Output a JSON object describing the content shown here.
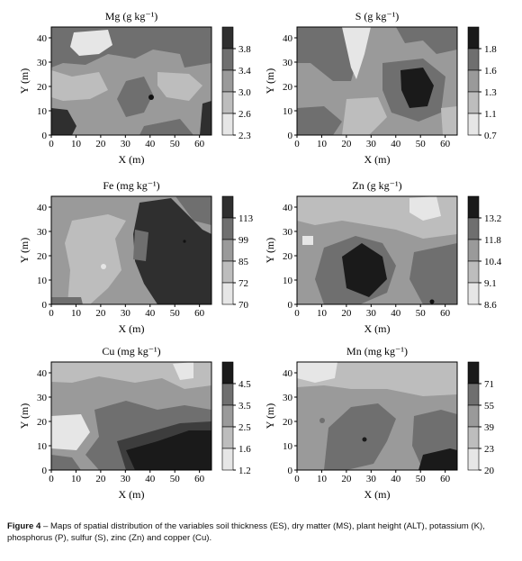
{
  "panels": [
    {
      "title": "Mg (g kg⁻¹)",
      "xlabel": "X (m)",
      "ylabel": "Y (m)",
      "xticks": [
        "0",
        "10",
        "20",
        "30",
        "40",
        "50",
        "60"
      ],
      "yticks": [
        "0",
        "10",
        "20",
        "30",
        "40"
      ],
      "legend": [
        "3.8",
        "3.4",
        "3.0",
        "2.6",
        "2.3"
      ],
      "shades": [
        "#e6e6e6",
        "#bdbdbd",
        "#9a9a9a",
        "#6f6f6f",
        "#2f2f2f"
      ]
    },
    {
      "title": "S (g kg⁻¹)",
      "xlabel": "X (m)",
      "ylabel": "Y (m)",
      "xticks": [
        "0",
        "10",
        "20",
        "30",
        "40",
        "50",
        "60"
      ],
      "yticks": [
        "0",
        "10",
        "20",
        "30",
        "40"
      ],
      "legend": [
        "1.8",
        "1.6",
        "1.3",
        "1.1",
        "0.7"
      ],
      "shades": [
        "#e6e6e6",
        "#bdbdbd",
        "#9a9a9a",
        "#6f6f6f",
        "#1a1a1a"
      ]
    },
    {
      "title": "Fe (mg kg⁻¹)",
      "xlabel": "X (m)",
      "ylabel": "Y (m)",
      "xticks": [
        "0",
        "10",
        "20",
        "30",
        "40",
        "50",
        "60"
      ],
      "yticks": [
        "0",
        "10",
        "20",
        "30",
        "40"
      ],
      "legend": [
        "113",
        "99",
        "85",
        "72",
        "70"
      ],
      "shades": [
        "#e6e6e6",
        "#bdbdbd",
        "#9a9a9a",
        "#6f6f6f",
        "#2f2f2f"
      ]
    },
    {
      "title": "Zn (g kg⁻¹)",
      "xlabel": "X (m)",
      "ylabel": "Y (m)",
      "xticks": [
        "0",
        "10",
        "20",
        "30",
        "40",
        "50",
        "60"
      ],
      "yticks": [
        "0",
        "10",
        "20",
        "30",
        "40"
      ],
      "legend": [
        "13.2",
        "11.8",
        "10.4",
        "9.1",
        "8.6"
      ],
      "shades": [
        "#e6e6e6",
        "#bdbdbd",
        "#9a9a9a",
        "#6f6f6f",
        "#1a1a1a"
      ]
    },
    {
      "title": "Cu (mg kg⁻¹)",
      "xlabel": "X (m)",
      "ylabel": "Y (m)",
      "xticks": [
        "0",
        "10",
        "20",
        "30",
        "40",
        "50",
        "60"
      ],
      "yticks": [
        "0",
        "10",
        "20",
        "30",
        "40"
      ],
      "legend": [
        "4.5",
        "3.5",
        "2.5",
        "1.6",
        "1.2"
      ],
      "shades": [
        "#e6e6e6",
        "#bdbdbd",
        "#9a9a9a",
        "#6f6f6f",
        "#1a1a1a"
      ]
    },
    {
      "title": "Mn (mg kg⁻¹)",
      "xlabel": "X (m)",
      "ylabel": "Y (m)",
      "xticks": [
        "0",
        "10",
        "20",
        "30",
        "40",
        "50",
        "60"
      ],
      "yticks": [
        "0",
        "10",
        "20",
        "30",
        "40"
      ],
      "legend": [
        "71",
        "55",
        "39",
        "23",
        "20"
      ],
      "shades": [
        "#e6e6e6",
        "#bdbdbd",
        "#9a9a9a",
        "#6f6f6f",
        "#1a1a1a"
      ]
    }
  ],
  "caption": {
    "label": "Figure 4",
    "text": " – Maps of spatial distribution of the variables soil thickness (ES), dry matter (MS), plant height (ALT), potassium (K), phosphorus (P), sulfur (S), zinc (Zn) and copper (Cu)."
  }
}
